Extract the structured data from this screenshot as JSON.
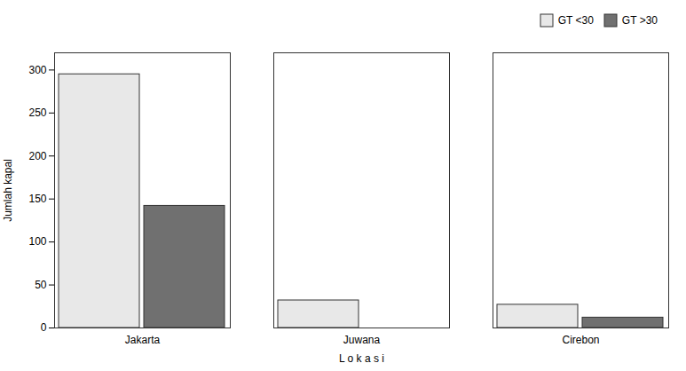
{
  "chart_data": {
    "type": "bar",
    "categories": [
      "Jakarta",
      "Juwana",
      "Cirebon"
    ],
    "series": [
      {
        "name": "GT <30",
        "color": "#e8e8e8",
        "values": [
          295,
          32,
          27
        ]
      },
      {
        "name": "GT >30",
        "color": "#707070",
        "values": [
          142,
          0,
          12
        ]
      }
    ],
    "xlabel": "L o k a s i",
    "ylabel": "Jumlah kapal",
    "ylim": [
      0,
      320
    ],
    "yticks": [
      0,
      50,
      100,
      150,
      200,
      250,
      300
    ],
    "grid": false,
    "legend": "upper right"
  }
}
